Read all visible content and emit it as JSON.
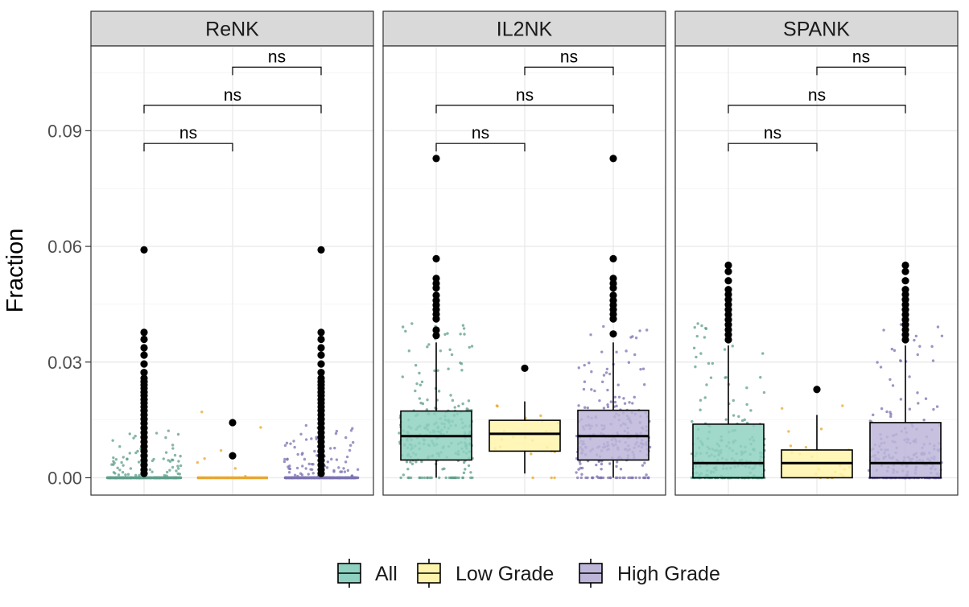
{
  "chart_data": {
    "type": "box",
    "y_axis_label": "Fraction",
    "y_range": [
      -0.0045,
      0.112
    ],
    "y_ticks": [
      0.0,
      0.03,
      0.06,
      0.09
    ],
    "y_tick_labels": [
      "0.00",
      "0.03",
      "0.06",
      "0.09"
    ],
    "minor_gridlines": true,
    "legend_position": "bottom",
    "groups": [
      {
        "name": "All",
        "color": "#8fd1c1",
        "point_color": "#5e9e8a"
      },
      {
        "name": "Low Grade",
        "color": "#fff4ac",
        "point_color": "#e8a730"
      },
      {
        "name": "High Grade",
        "color": "#bdb6d9",
        "point_color": "#7b72b0"
      }
    ],
    "panels": [
      {
        "title": "ReNK",
        "boxes": [
          {
            "group": "All",
            "q1": 0.0,
            "median": 0.0,
            "q3": 0.0,
            "whisker_low": 0.0,
            "whisker_high": 0.0,
            "outliers": [
              0.0591,
              0.0377,
              0.0359,
              0.0337,
              0.0318,
              0.0295,
              0.0273,
              0.0258,
              0.0249,
              0.0241,
              0.0232,
              0.0222,
              0.0213,
              0.0203,
              0.0194,
              0.0184,
              0.0174,
              0.0163,
              0.0152,
              0.0141,
              0.0129,
              0.0117,
              0.0105,
              0.0093,
              0.0081,
              0.0069,
              0.0057,
              0.0045,
              0.0033,
              0.0021,
              0.0011
            ]
          },
          {
            "group": "Low Grade",
            "q1": 0.0,
            "median": 0.0,
            "q3": 0.0,
            "whisker_low": 0.0,
            "whisker_high": 0.0,
            "outliers": [
              0.0143,
              0.0057
            ]
          },
          {
            "group": "High Grade",
            "q1": 0.0,
            "median": 0.0,
            "q3": 0.0,
            "whisker_low": 0.0,
            "whisker_high": 0.0,
            "outliers": [
              0.0591,
              0.0377,
              0.0359,
              0.0337,
              0.0318,
              0.0295,
              0.0273,
              0.0258,
              0.0249,
              0.0241,
              0.0232,
              0.0222,
              0.0213,
              0.0203,
              0.0194,
              0.0184,
              0.0174,
              0.0163,
              0.0152,
              0.0141,
              0.0129,
              0.0117,
              0.0105,
              0.0093,
              0.0081,
              0.0069,
              0.0057,
              0.0045,
              0.0033,
              0.0021,
              0.0011
            ]
          }
        ],
        "comparisons": [
          {
            "from": "All",
            "to": "Low Grade",
            "y": 0.0867,
            "label": "ns"
          },
          {
            "from": "All",
            "to": "High Grade",
            "y": 0.0966,
            "label": "ns"
          },
          {
            "from": "Low Grade",
            "to": "High Grade",
            "y": 0.1065,
            "label": "ns"
          }
        ]
      },
      {
        "title": "IL2NK",
        "boxes": [
          {
            "group": "All",
            "q1": 0.0046,
            "median": 0.0108,
            "q3": 0.0173,
            "whisker_low": 0.0,
            "whisker_high": 0.0351,
            "outliers": [
              0.0828,
              0.0568,
              0.0517,
              0.0504,
              0.0492,
              0.0473,
              0.046,
              0.0448,
              0.0436,
              0.0424,
              0.0412,
              0.0383,
              0.0369
            ]
          },
          {
            "group": "Low Grade",
            "q1": 0.0069,
            "median": 0.0114,
            "q3": 0.0149,
            "whisker_low": 0.0011,
            "whisker_high": 0.0198,
            "outliers": [
              0.0284
            ]
          },
          {
            "group": "High Grade",
            "q1": 0.0046,
            "median": 0.0108,
            "q3": 0.0175,
            "whisker_low": 0.0,
            "whisker_high": 0.0351,
            "outliers": [
              0.0828,
              0.0568,
              0.0517,
              0.0504,
              0.0492,
              0.0473,
              0.046,
              0.0448,
              0.0436,
              0.0424,
              0.0412,
              0.0373
            ]
          }
        ],
        "comparisons": [
          {
            "from": "All",
            "to": "Low Grade",
            "y": 0.0867,
            "label": "ns"
          },
          {
            "from": "All",
            "to": "High Grade",
            "y": 0.0966,
            "label": "ns"
          },
          {
            "from": "Low Grade",
            "to": "High Grade",
            "y": 0.1065,
            "label": "ns"
          }
        ]
      },
      {
        "title": "SPANK",
        "boxes": [
          {
            "group": "All",
            "q1": 0.0,
            "median": 0.0038,
            "q3": 0.0139,
            "whisker_low": 0.0,
            "whisker_high": 0.0343,
            "outliers": [
              0.0551,
              0.0535,
              0.0511,
              0.0488,
              0.0475,
              0.0462,
              0.0449,
              0.0436,
              0.0423,
              0.041,
              0.0397,
              0.0384,
              0.0371,
              0.0358
            ]
          },
          {
            "group": "Low Grade",
            "q1": 0.0,
            "median": 0.0038,
            "q3": 0.0072,
            "whisker_low": 0.0,
            "whisker_high": 0.0163,
            "outliers": [
              0.0229
            ]
          },
          {
            "group": "High Grade",
            "q1": 0.0,
            "median": 0.0038,
            "q3": 0.0143,
            "whisker_low": 0.0,
            "whisker_high": 0.0343,
            "outliers": [
              0.0551,
              0.0535,
              0.0511,
              0.0488,
              0.0475,
              0.0462,
              0.0449,
              0.0436,
              0.0423,
              0.041,
              0.0397,
              0.0384,
              0.0371,
              0.0358
            ]
          }
        ],
        "comparisons": [
          {
            "from": "All",
            "to": "Low Grade",
            "y": 0.0867,
            "label": "ns"
          },
          {
            "from": "All",
            "to": "High Grade",
            "y": 0.0966,
            "label": "ns"
          },
          {
            "from": "Low Grade",
            "to": "High Grade",
            "y": 0.1065,
            "label": "ns"
          }
        ]
      }
    ]
  }
}
